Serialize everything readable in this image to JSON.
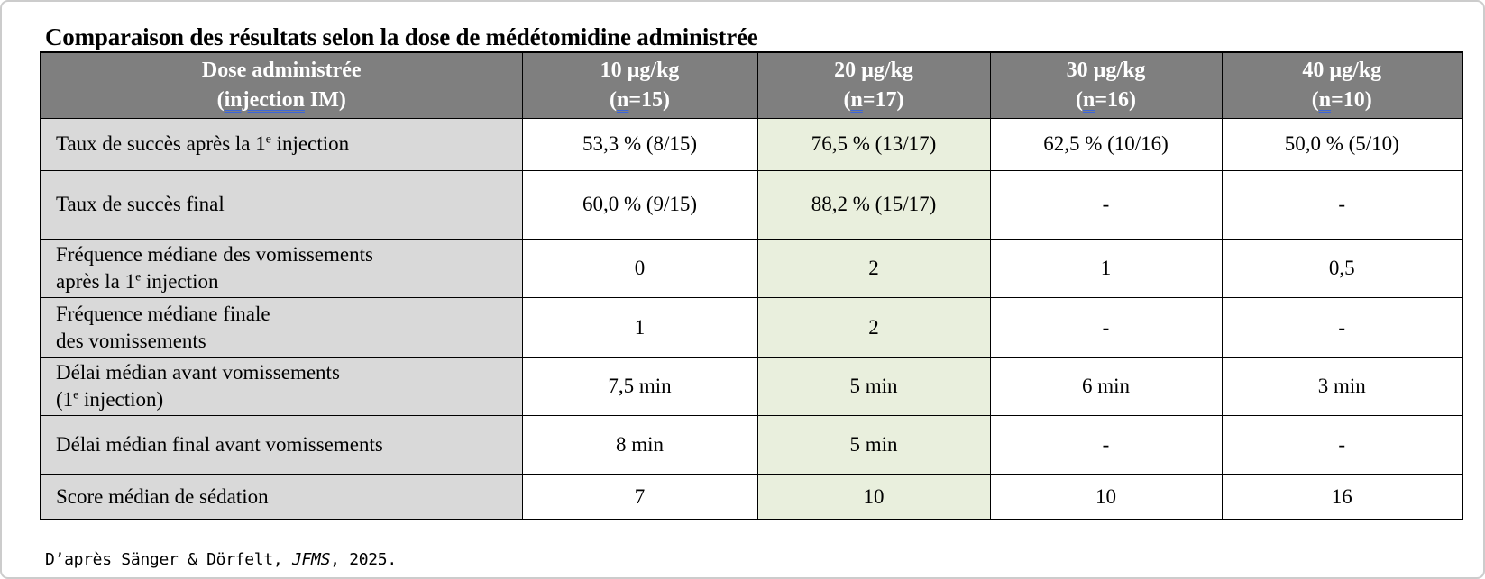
{
  "colors": {
    "header_bg": "#7f7f7f",
    "label_column_bg": "#d9d9d9",
    "highlight_column_bg": "#e9efdd",
    "table_border": "#000000",
    "grammar_underline_blue": "#3c66d9",
    "frame_border": "#cccccc"
  },
  "title": "Comparaison des résultats selon la dose de médétomidine administrée",
  "table": {
    "highlight_column_index": 1,
    "header": {
      "label_lines": [
        "Dose administrée",
        "(~injection~ IM)"
      ],
      "columns": [
        {
          "lines": [
            "10 µg/kg",
            "(~n~=15)"
          ]
        },
        {
          "lines": [
            "20 µg/kg",
            "(~n~=17)"
          ]
        },
        {
          "lines": [
            "30 µg/kg",
            "(~n~=16)"
          ]
        },
        {
          "lines": [
            "40 µg/kg",
            "(~n~=10)"
          ]
        }
      ]
    },
    "rows": [
      {
        "label_lines": [
          "Taux de succès après la 1^e^ injection"
        ],
        "values": [
          "53,3 % (8/15)",
          "76,5 % (13/17)",
          "62,5 % (10/16)",
          "50,0 % (5/10)"
        ],
        "section_end": false
      },
      {
        "label_lines": [
          "Taux de succès final"
        ],
        "values": [
          "60,0 % (9/15)",
          "88,2 % (15/17)",
          "-",
          "-"
        ],
        "section_end": true
      },
      {
        "label_lines": [
          "Fréquence médiane des vomissements",
          "après la 1^e^ injection"
        ],
        "values": [
          "0",
          "2",
          "1",
          "0,5"
        ],
        "section_end": false
      },
      {
        "label_lines": [
          "Fréquence médiane finale",
          "des vomissements"
        ],
        "values": [
          "1",
          "2",
          "-",
          "-"
        ],
        "section_end": false
      },
      {
        "label_lines": [
          "Délai médian avant vomissements",
          "(1^e^ injection)"
        ],
        "values": [
          "7,5 min",
          "5 min",
          "6 min",
          "3 min"
        ],
        "section_end": false
      },
      {
        "label_lines": [
          "Délai médian final avant vomissements"
        ],
        "values": [
          "8 min",
          "5 min",
          "-",
          "-"
        ],
        "section_end": true
      },
      {
        "label_lines": [
          "Score médian de sédation"
        ],
        "values": [
          "7",
          "10",
          "10",
          "16"
        ],
        "section_end": false
      }
    ]
  },
  "footer": {
    "prefix": "D’après Sänger & Dörfelt, ",
    "journal": "JFMS",
    "suffix": ", 2025."
  }
}
